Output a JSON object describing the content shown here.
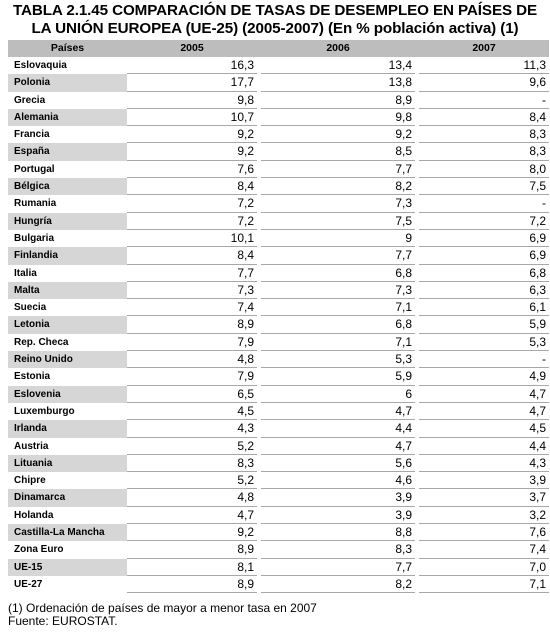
{
  "title_line1": "TABLA 2.1.45 COMPARACIÓN DE TASAS DE DESEMPLEO EN PAÍSES DE",
  "title_line2": "LA UNIÓN EUROPEA (UE-25) (2005-2007) (En % población activa) (1)",
  "headers": [
    "Países",
    "2005",
    "2006",
    "2007"
  ],
  "rows": [
    {
      "country": "Eslovaquia",
      "v2005": "16,3",
      "v2006": "13,4",
      "v2007": "11,3"
    },
    {
      "country": "Polonia",
      "v2005": "17,7",
      "v2006": "13,8",
      "v2007": "9,6"
    },
    {
      "country": "Grecia",
      "v2005": "9,8",
      "v2006": "8,9",
      "v2007": "-"
    },
    {
      "country": "Alemania",
      "v2005": "10,7",
      "v2006": "9,8",
      "v2007": "8,4"
    },
    {
      "country": "Francia",
      "v2005": "9,2",
      "v2006": "9,2",
      "v2007": "8,3"
    },
    {
      "country": "España",
      "v2005": "9,2",
      "v2006": "8,5",
      "v2007": "8,3"
    },
    {
      "country": "Portugal",
      "v2005": "7,6",
      "v2006": "7,7",
      "v2007": "8,0"
    },
    {
      "country": "Bélgica",
      "v2005": "8,4",
      "v2006": "8,2",
      "v2007": "7,5"
    },
    {
      "country": "Rumania",
      "v2005": "7,2",
      "v2006": "7,3",
      "v2007": "-"
    },
    {
      "country": "Hungría",
      "v2005": "7,2",
      "v2006": "7,5",
      "v2007": "7,2"
    },
    {
      "country": "Bulgaria",
      "v2005": "10,1",
      "v2006": "9",
      "v2007": "6,9"
    },
    {
      "country": "Finlandia",
      "v2005": "8,4",
      "v2006": "7,7",
      "v2007": "6,9"
    },
    {
      "country": "Italia",
      "v2005": "7,7",
      "v2006": "6,8",
      "v2007": "6,8"
    },
    {
      "country": "Malta",
      "v2005": "7,3",
      "v2006": "7,3",
      "v2007": "6,3"
    },
    {
      "country": "Suecia",
      "v2005": "7,4",
      "v2006": "7,1",
      "v2007": "6,1"
    },
    {
      "country": "Letonia",
      "v2005": "8,9",
      "v2006": "6,8",
      "v2007": "5,9"
    },
    {
      "country": "Rep. Checa",
      "v2005": "7,9",
      "v2006": "7,1",
      "v2007": "5,3"
    },
    {
      "country": "Reino Unido",
      "v2005": "4,8",
      "v2006": "5,3",
      "v2007": "-"
    },
    {
      "country": "Estonia",
      "v2005": "7,9",
      "v2006": "5,9",
      "v2007": "4,9"
    },
    {
      "country": "Eslovenia",
      "v2005": "6,5",
      "v2006": "6",
      "v2007": "4,7"
    },
    {
      "country": "Luxemburgo",
      "v2005": "4,5",
      "v2006": "4,7",
      "v2007": "4,7"
    },
    {
      "country": "Irlanda",
      "v2005": "4,3",
      "v2006": "4,4",
      "v2007": "4,5"
    },
    {
      "country": "Austria",
      "v2005": "5,2",
      "v2006": "4,7",
      "v2007": "4,4"
    },
    {
      "country": "Lituania",
      "v2005": "8,3",
      "v2006": "5,6",
      "v2007": "4,3"
    },
    {
      "country": "Chipre",
      "v2005": "5,2",
      "v2006": "4,6",
      "v2007": "3,9"
    },
    {
      "country": "Dinamarca",
      "v2005": "4,8",
      "v2006": "3,9",
      "v2007": "3,7"
    },
    {
      "country": "Holanda",
      "v2005": "4,7",
      "v2006": "3,9",
      "v2007": "3,2"
    },
    {
      "country": "Castilla-La Mancha",
      "v2005": "9,2",
      "v2006": "8,8",
      "v2007": "7,6"
    },
    {
      "country": "Zona Euro",
      "v2005": "8,9",
      "v2006": "8,3",
      "v2007": "7,4"
    },
    {
      "country": "UE-15",
      "v2005": "8,1",
      "v2006": "7,7",
      "v2007": "7,0"
    },
    {
      "country": "UE-27",
      "v2005": "8,9",
      "v2006": "8,2",
      "v2007": "7,1"
    }
  ],
  "footnote": "(1) Ordenación de países de mayor a menor tasa en 2007",
  "source": "Fuente: EUROSTAT."
}
